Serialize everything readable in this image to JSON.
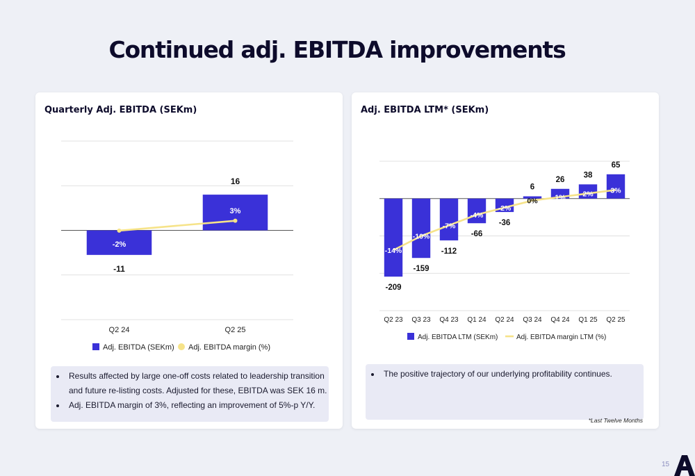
{
  "title": "Continued adj. EBITDA improvements",
  "page_number": "15",
  "colors": {
    "bar": "#3a31d8",
    "line": "#f6e389",
    "title": "#0d0b2b"
  },
  "left_panel": {
    "title": "Quarterly Adj. EBITDA (SEKm)",
    "notes": [
      "Results affected by large one-off costs related to leadership transition and future re-listing costs. Adjusted for these, EBITDA was SEK 16 m.",
      "Adj. EBITDA margin of 3%, reflecting an improvement of 5%-p  Y/Y."
    ]
  },
  "right_panel": {
    "title": "Adj. EBITDA LTM* (SEKm)",
    "notes": [
      "The positive trajectory of our underlying profitability continues."
    ],
    "footnote": "*Last Twelve Months"
  },
  "chart_data": [
    {
      "type": "bar",
      "categories": [
        "Q2 24",
        "Q2 25"
      ],
      "series": [
        {
          "name": "Adj. EBITDA (SEKm)",
          "type": "bar",
          "values": [
            -11,
            16
          ],
          "value_labels": [
            "-11",
            "16"
          ]
        },
        {
          "name": "Adj. EBITDA margin (%)",
          "type": "line",
          "values": [
            -2,
            3
          ],
          "value_labels": [
            "-2%",
            "3%"
          ]
        }
      ],
      "legend": "bottom",
      "grid": true,
      "ylim": [
        -40,
        40
      ]
    },
    {
      "type": "bar",
      "categories": [
        "Q2 23",
        "Q3 23",
        "Q4 23",
        "Q1 24",
        "Q2 24",
        "Q3 24",
        "Q4 24",
        "Q1 25",
        "Q2 25"
      ],
      "series": [
        {
          "name": "Adj. EBITDA LTM (SEKm)",
          "type": "bar",
          "values": [
            -209,
            -159,
            -112,
            -66,
            -36,
            6,
            26,
            38,
            65
          ],
          "value_labels": [
            "-209",
            "-159",
            "-112",
            "-66",
            "-36",
            "6",
            "26",
            "38",
            "65"
          ]
        },
        {
          "name": "Adj. EBITDA margin LTM (%)",
          "type": "line",
          "values": [
            -14,
            -10,
            -7,
            -4,
            -2,
            0,
            1,
            2,
            3
          ],
          "value_labels": [
            "-14%",
            "-10%",
            "-7%",
            "-4%",
            "-2%",
            "0%",
            "1%",
            "2%",
            "3%"
          ]
        }
      ],
      "legend": "bottom",
      "grid": true,
      "ylim": [
        -300,
        100
      ]
    }
  ]
}
